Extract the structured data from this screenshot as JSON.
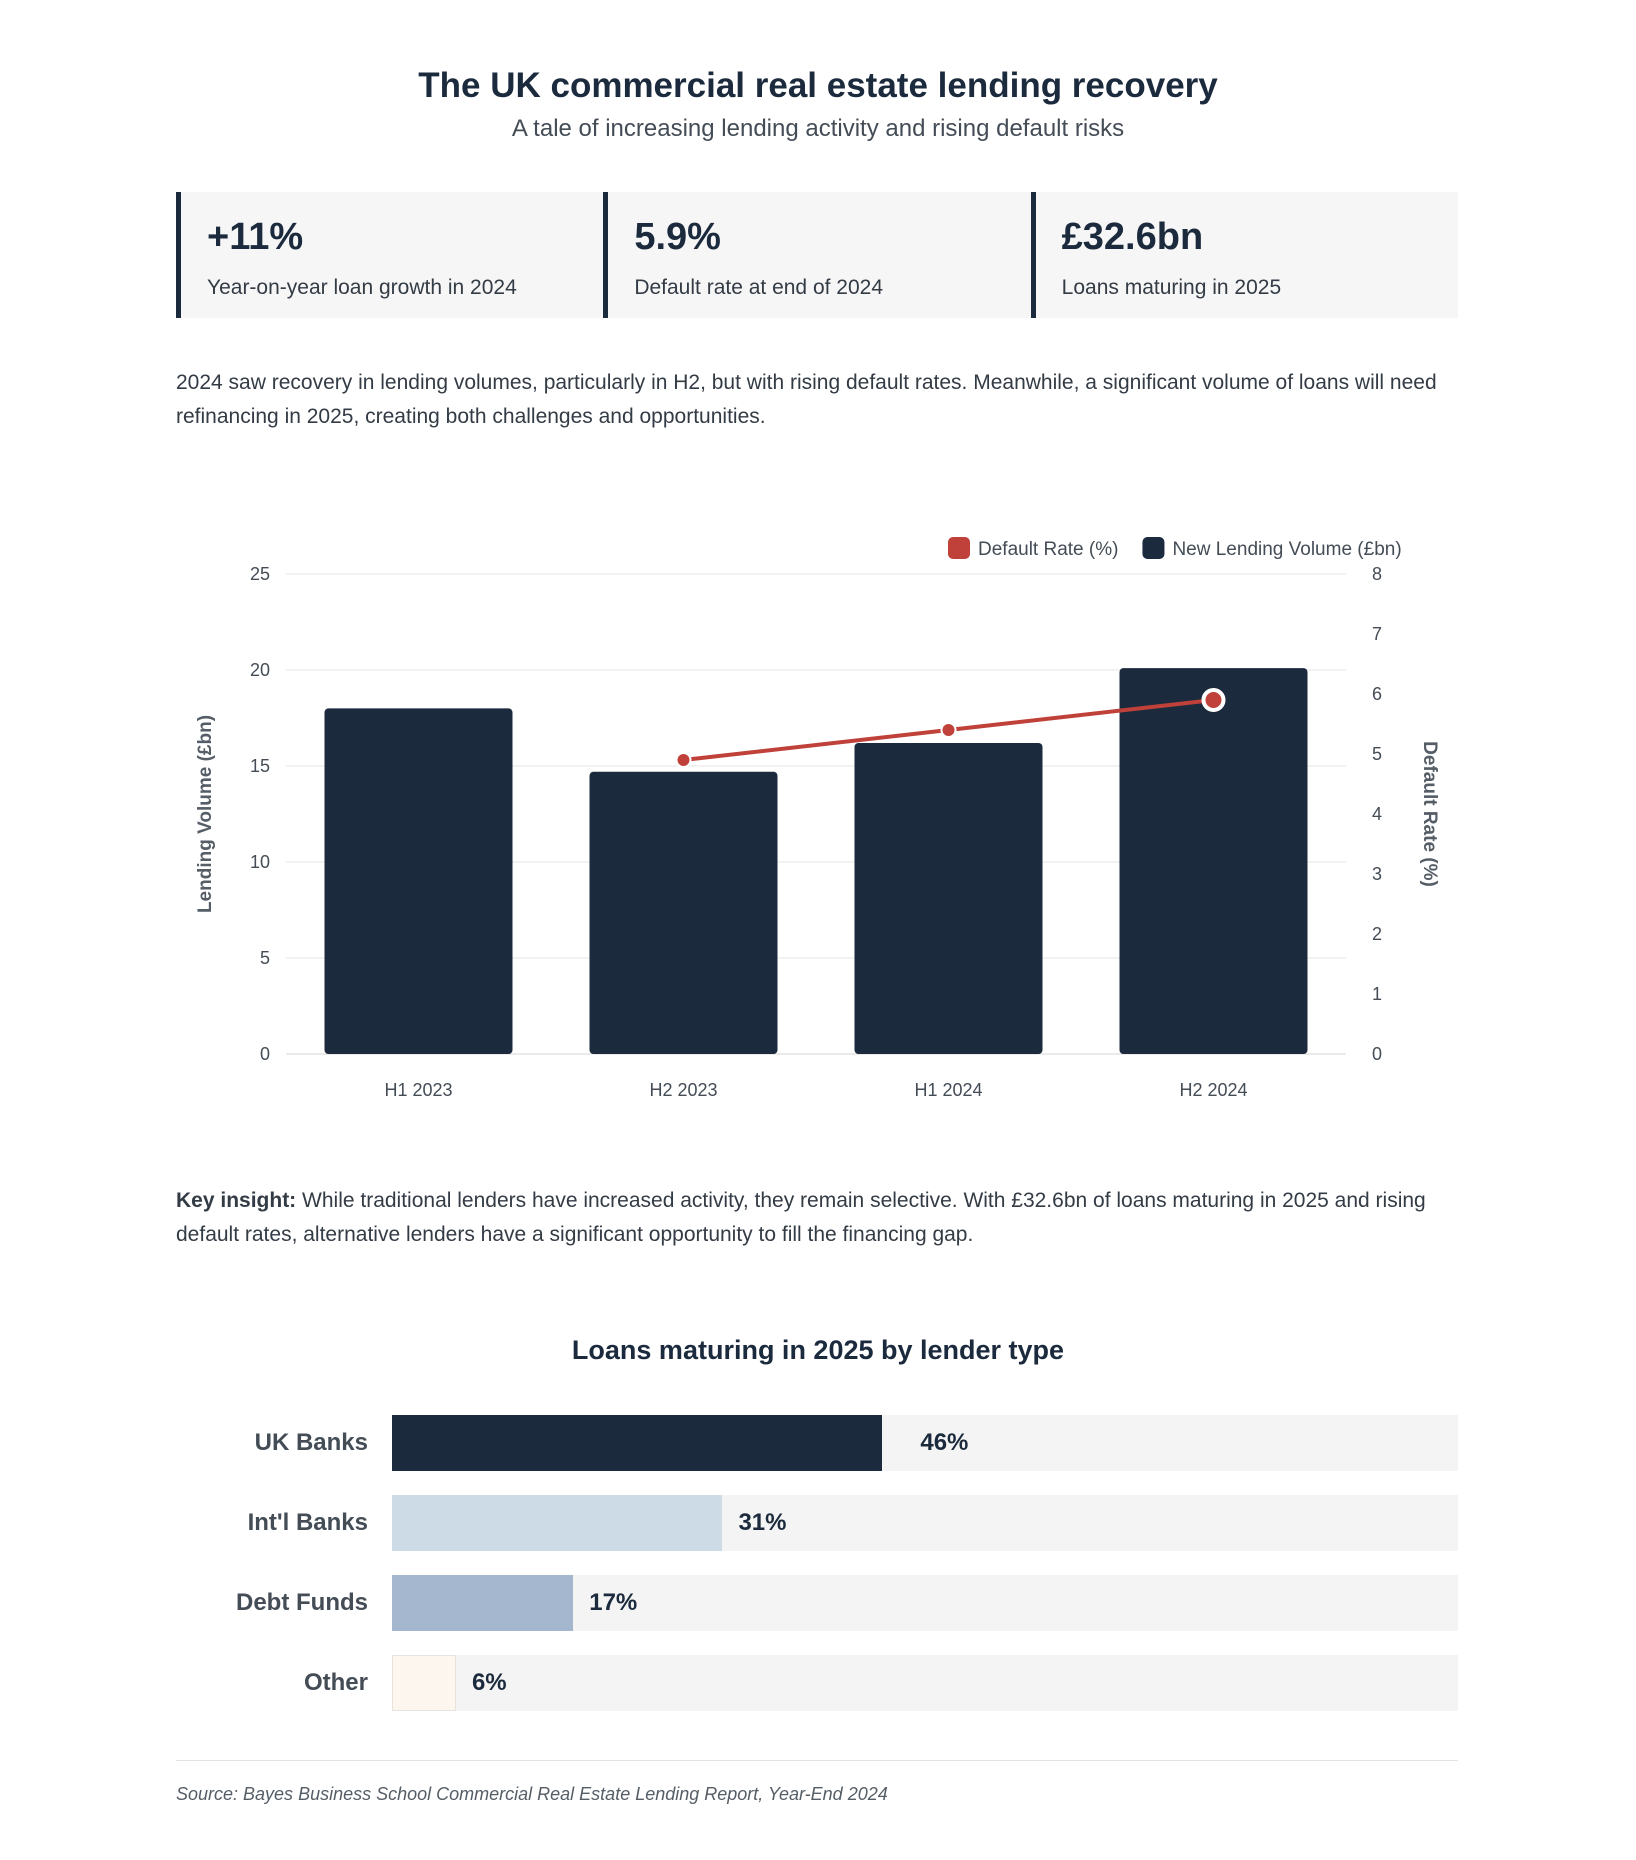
{
  "header": {
    "title": "The UK commercial real estate lending recovery",
    "subtitle": "A tale of increasing lending activity and rising default risks"
  },
  "stats": [
    {
      "value": "+11%",
      "label": "Year-on-year loan growth in 2024"
    },
    {
      "value": "5.9%",
      "label": "Default rate at end of 2024"
    },
    {
      "value": "£32.6bn",
      "label": "Loans maturing in 2025"
    }
  ],
  "intro": "2024 saw recovery in lending volumes, particularly in H2, but with rising default rates. Meanwhile, a significant volume of loans will need refinancing in 2025, creating both challenges and opportunities.",
  "insight": {
    "lead": "Key insight:",
    "text": " While traditional lenders have increased activity, they remain selective. With £32.6bn of loans maturing in 2025 and rising default rates, alternative lenders have a significant opportunity to fill the financing gap."
  },
  "colors": {
    "navy": "#1b2a3d",
    "red": "#c0413a",
    "light_blue": "#cddbe7",
    "steel_blue": "#a5b6cf",
    "cream": "#fdf6ef"
  },
  "chart_data": [
    {
      "type": "bar",
      "categories": [
        "H1 2023",
        "H2 2023",
        "H1 2024",
        "H2 2024"
      ],
      "series": [
        {
          "name": "New Lending Volume (£bn)",
          "type": "bar",
          "axis": "left",
          "values": [
            18,
            14.7,
            16.2,
            20.1
          ],
          "color": "#1b2a3d"
        },
        {
          "name": "Default Rate (%)",
          "type": "line",
          "axis": "right",
          "values": [
            null,
            4.9,
            5.4,
            5.9
          ],
          "color": "#c0413a"
        }
      ],
      "ylabel": "Lending Volume (£bn)",
      "y2label": "Default Rate (%)",
      "ylim": [
        0,
        25
      ],
      "y2lim": [
        0,
        8
      ],
      "yticks": [
        0,
        5,
        10,
        15,
        20,
        25
      ],
      "y2ticks": [
        0,
        1,
        2,
        3,
        4,
        5,
        6,
        7,
        8
      ],
      "legend_order": [
        "Default Rate (%)",
        "New Lending Volume (£bn)"
      ],
      "legend_position": "top-right",
      "grid": true
    },
    {
      "type": "bar",
      "orientation": "horizontal",
      "title": "Loans maturing in 2025 by lender type",
      "categories": [
        "UK Banks",
        "Int'l Banks",
        "Debt Funds",
        "Other"
      ],
      "values": [
        46,
        31,
        17,
        6
      ],
      "value_labels": [
        "46%",
        "31%",
        "17%",
        "6%"
      ],
      "colors": [
        "#1b2a3d",
        "#cddbe7",
        "#a5b6cf",
        "#fdf6ef"
      ],
      "xlim": [
        0,
        100
      ]
    }
  ],
  "source": "Source: Bayes Business School Commercial Real Estate Lending Report, Year-End 2024"
}
